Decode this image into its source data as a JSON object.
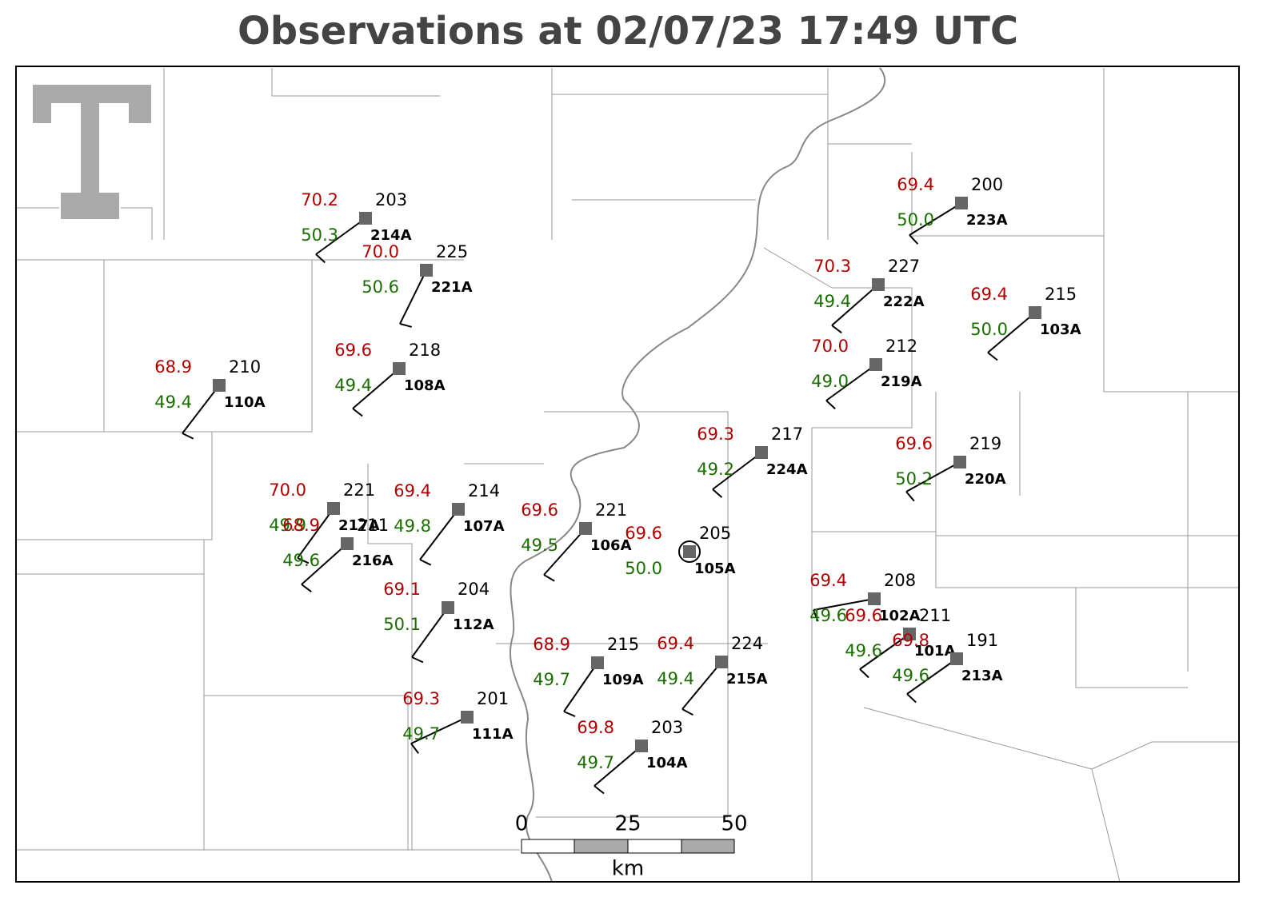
{
  "title": "Observations at 02/07/23 17:49 UTC",
  "stations": [
    {
      "id": "214A",
      "temp": "70.2",
      "dew": "50.3",
      "value": "203"
    },
    {
      "id": "221A",
      "temp": "70.0",
      "dew": "50.6",
      "value": "225"
    },
    {
      "id": "110A",
      "temp": "68.9",
      "dew": "49.4",
      "value": "210"
    },
    {
      "id": "108A",
      "temp": "69.6",
      "dew": "49.4",
      "value": "218"
    },
    {
      "id": "223A",
      "temp": "69.4",
      "dew": "50.0",
      "value": "200"
    },
    {
      "id": "222A",
      "temp": "70.3",
      "dew": "49.4",
      "value": "227"
    },
    {
      "id": "103A",
      "temp": "69.4",
      "dew": "50.0",
      "value": "215"
    },
    {
      "id": "219A",
      "temp": "70.0",
      "dew": "49.0",
      "value": "212"
    },
    {
      "id": "224A",
      "temp": "69.3",
      "dew": "49.2",
      "value": "217"
    },
    {
      "id": "220A",
      "temp": "69.6",
      "dew": "50.2",
      "value": "219"
    },
    {
      "id": "217A",
      "temp": "70.0",
      "dew": "49.9",
      "value": "221"
    },
    {
      "id": "216A",
      "temp": "68.9",
      "dew": "49.6",
      "value": "211"
    },
    {
      "id": "107A",
      "temp": "69.4",
      "dew": "49.8",
      "value": "214"
    },
    {
      "id": "106A",
      "temp": "69.6",
      "dew": "49.5",
      "value": "221"
    },
    {
      "id": "105A",
      "temp": "69.6",
      "dew": "50.0",
      "value": "205"
    },
    {
      "id": "112A",
      "temp": "69.1",
      "dew": "50.1",
      "value": "204"
    },
    {
      "id": "102A",
      "temp": "69.4",
      "dew": "49.6",
      "value": "208"
    },
    {
      "id": "101A",
      "temp": "69.6",
      "dew": "49.6",
      "value": "211"
    },
    {
      "id": "213A",
      "temp": "69.8",
      "dew": "49.6",
      "value": "191"
    },
    {
      "id": "109A",
      "temp": "68.9",
      "dew": "49.7",
      "value": "215"
    },
    {
      "id": "215A",
      "temp": "69.4",
      "dew": "49.4",
      "value": "224"
    },
    {
      "id": "111A",
      "temp": "69.3",
      "dew": "49.7",
      "value": "201"
    },
    {
      "id": "104A",
      "temp": "69.8",
      "dew": "49.7",
      "value": "203"
    }
  ],
  "scale": {
    "labels": [
      "0",
      "25",
      "50"
    ],
    "unit": "km"
  }
}
